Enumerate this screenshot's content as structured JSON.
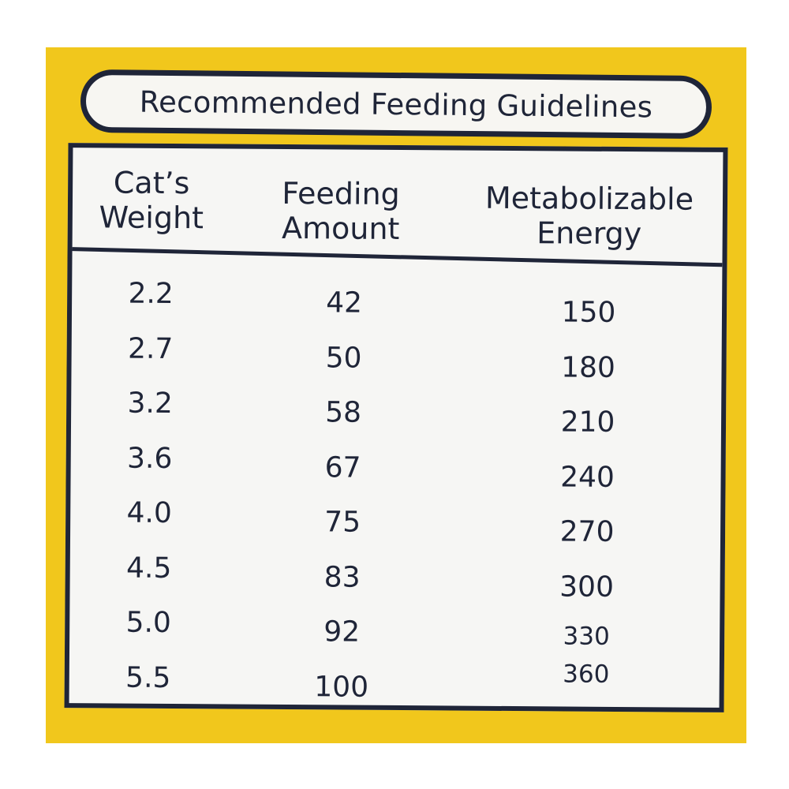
{
  "title": "Recommended Feeding Guidelines",
  "headers": {
    "weight": [
      "Cat’s",
      "Weight"
    ],
    "amount": [
      "Feeding",
      "Amount"
    ],
    "energy": [
      "Metabolizable",
      "Energy"
    ]
  },
  "rows": [
    {
      "weight": "2.2",
      "amount": "42",
      "energy": "150"
    },
    {
      "weight": "2.7",
      "amount": "50",
      "energy": "180"
    },
    {
      "weight": "3.2",
      "amount": "58",
      "energy": "210"
    },
    {
      "weight": "3.6",
      "amount": "67",
      "energy": "240"
    },
    {
      "weight": "4.0",
      "amount": "75",
      "energy": "270"
    },
    {
      "weight": "4.5",
      "amount": "83",
      "energy": "300"
    },
    {
      "weight": "5.0",
      "amount": "92",
      "energy": "330"
    },
    {
      "weight": "5.5",
      "amount": "100",
      "energy": "360"
    }
  ],
  "colors": {
    "background": "#f1c71c",
    "ink": "#1f2538"
  }
}
